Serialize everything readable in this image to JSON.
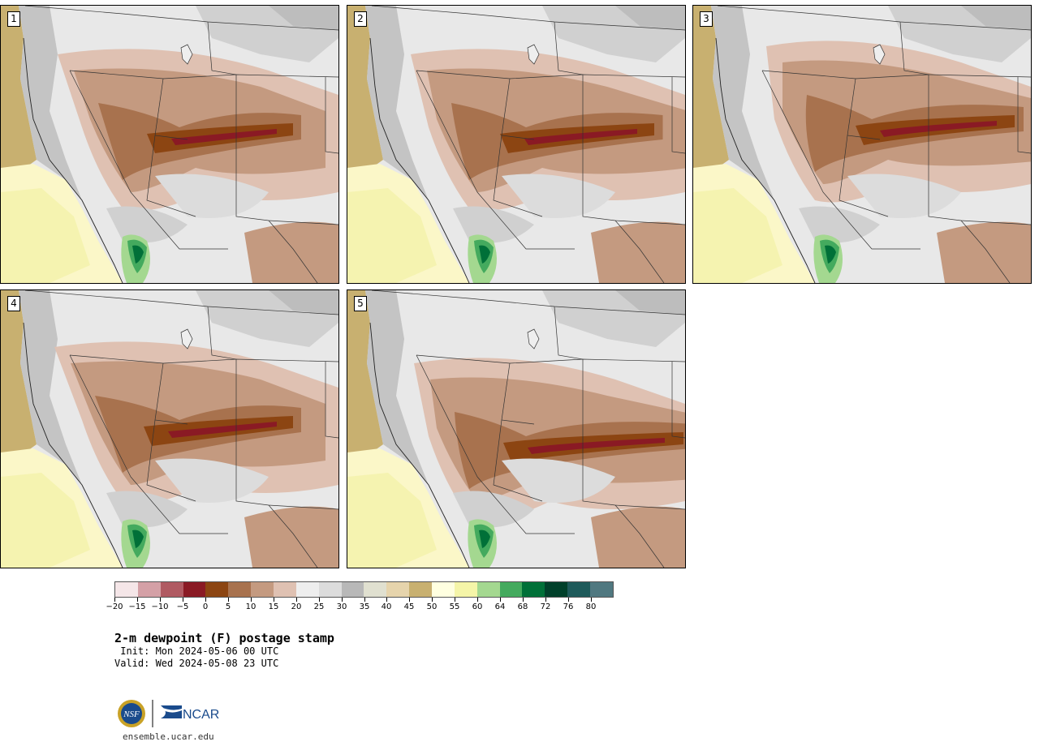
{
  "figure": {
    "title": "2-m dewpoint (F) postage stamp",
    "init_line": " Init: Mon 2024-05-06 00 UTC",
    "valid_line": "Valid: Wed 2024-05-08 23 UTC",
    "footer": "ensemble.ucar.edu",
    "logos": {
      "nsf": "NSF",
      "ncar": "NCAR"
    }
  },
  "panels": [
    {
      "label": "1"
    },
    {
      "label": "2"
    },
    {
      "label": "3"
    },
    {
      "label": "4"
    },
    {
      "label": "5"
    }
  ],
  "colorbar": {
    "unit": "F",
    "colors": [
      "#f5e6e8",
      "#d4a0a6",
      "#b05a62",
      "#8a1a24",
      "#8c4512",
      "#a8724e",
      "#c49a80",
      "#dfc1b2",
      "#eeeeee",
      "#dcdcdc",
      "#b8b8b8",
      "#e0e0d0",
      "#e6d4ac",
      "#c8b070",
      "#ffffe0",
      "#f5f5a8",
      "#a4d890",
      "#44aa5e",
      "#007038",
      "#00402a",
      "#1e5a5a",
      "#507880"
    ],
    "tick_labels": [
      "−20",
      "−15",
      "−10",
      "−5",
      "0",
      "5",
      "10",
      "15",
      "20",
      "25",
      "30",
      "35",
      "40",
      "45",
      "50",
      "55",
      "60",
      "64",
      "68",
      "72",
      "76",
      "80"
    ]
  }
}
